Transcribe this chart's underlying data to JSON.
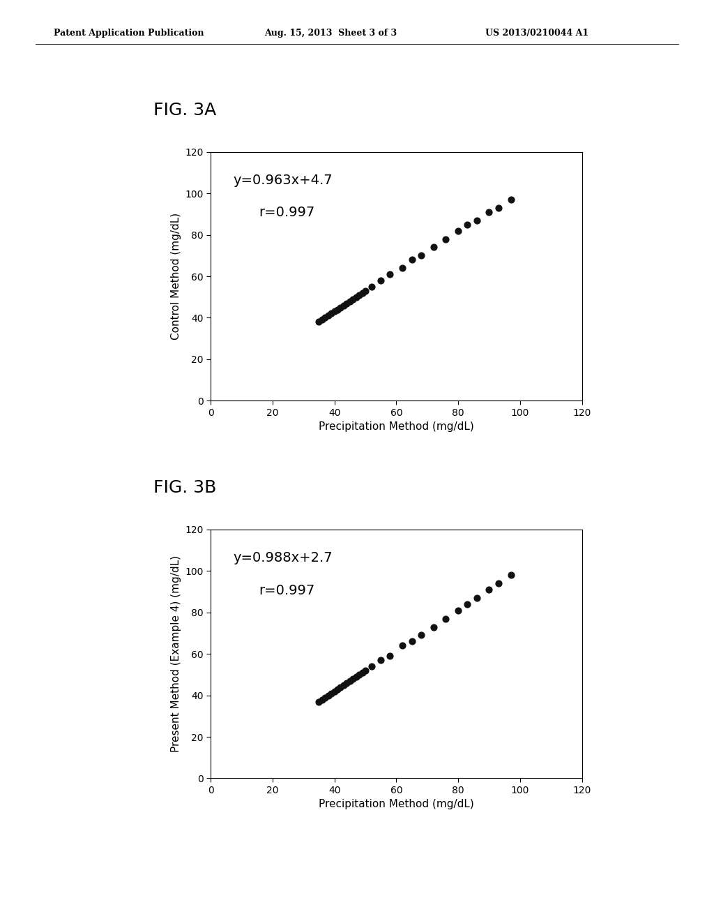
{
  "header_left": "Patent Application Publication",
  "header_center": "Aug. 15, 2013  Sheet 3 of 3",
  "header_right": "US 2013/0210044 A1",
  "fig3a_label": "FIG. 3A",
  "fig3b_label": "FIG. 3B",
  "fig3a_equation": "y=0.963x+4.7",
  "fig3a_r": "r=0.997",
  "fig3b_equation": "y=0.988x+2.7",
  "fig3b_r": "r=0.997",
  "fig3a_xlabel": "Precipitation Method (mg/dL)",
  "fig3a_ylabel": "Control Method (mg/dL)",
  "fig3b_xlabel": "Precipitation Method (mg/dL)",
  "fig3b_ylabel": "Present Method (Example 4) (mg/dL)",
  "xlim": [
    0,
    120
  ],
  "ylim": [
    0,
    120
  ],
  "xticks": [
    0,
    20,
    40,
    60,
    80,
    100,
    120
  ],
  "yticks": [
    0,
    20,
    40,
    60,
    80,
    100,
    120
  ],
  "fig3a_x": [
    35,
    36,
    37,
    38,
    39,
    40,
    41,
    42,
    43,
    44,
    45,
    46,
    47,
    48,
    49,
    50,
    52,
    55,
    58,
    62,
    65,
    68,
    72,
    76,
    80,
    83,
    86,
    90,
    93,
    97
  ],
  "fig3a_y": [
    38,
    39,
    40,
    41,
    42,
    43,
    44,
    45,
    46,
    47,
    48,
    49,
    50,
    51,
    52,
    53,
    55,
    58,
    61,
    64,
    68,
    70,
    74,
    78,
    82,
    85,
    87,
    91,
    93,
    97
  ],
  "fig3b_x": [
    35,
    36,
    37,
    38,
    39,
    40,
    41,
    42,
    43,
    44,
    45,
    46,
    47,
    48,
    49,
    50,
    52,
    55,
    58,
    62,
    65,
    68,
    72,
    76,
    80,
    83,
    86,
    90,
    93,
    97
  ],
  "fig3b_y": [
    37,
    38,
    39,
    40,
    41,
    42,
    43,
    44,
    45,
    46,
    47,
    48,
    49,
    50,
    51,
    52,
    54,
    57,
    59,
    64,
    66,
    69,
    73,
    77,
    81,
    84,
    87,
    91,
    94,
    98
  ],
  "background_color": "#ffffff",
  "dot_color": "#111111",
  "dot_size": 40,
  "header_fontsize": 9,
  "figlabel_fontsize": 18,
  "tick_fontsize": 10,
  "axis_label_fontsize": 11,
  "annot_fontsize": 14
}
